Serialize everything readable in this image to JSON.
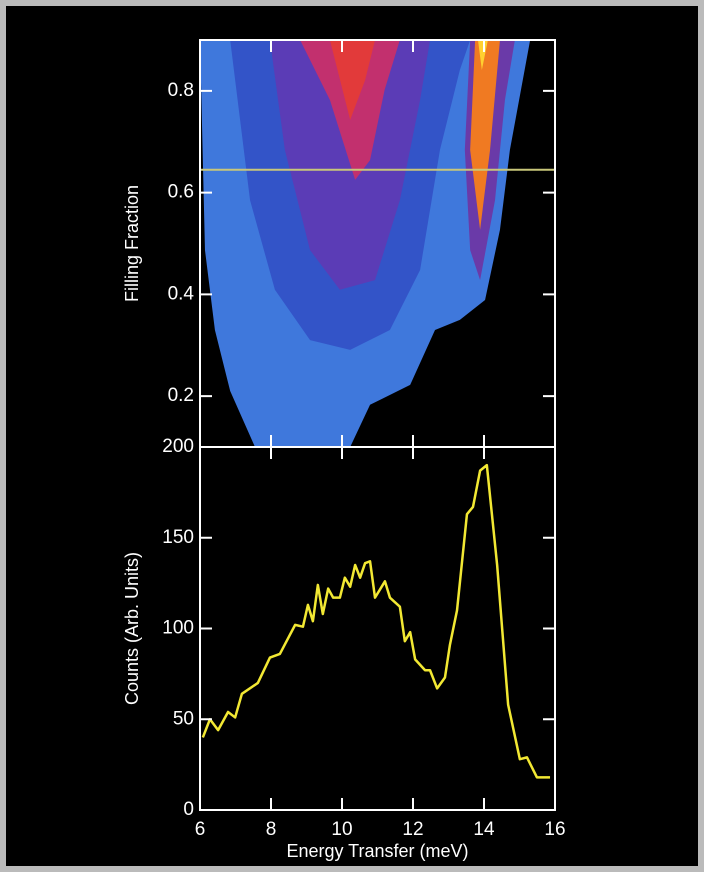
{
  "chart_data": [
    {
      "type": "contour",
      "ylabel": "Filling Fraction",
      "xlim": [
        6,
        16
      ],
      "ylim": [
        0.1,
        0.9
      ],
      "xticks": [
        6,
        8,
        10,
        12,
        14,
        16
      ],
      "yticks": [
        0.2,
        0.4,
        0.6,
        0.8
      ],
      "hline": 0.645,
      "hline_color": "#c9c77a",
      "contours": [
        {
          "color": "#3f78dc",
          "points": [
            [
              6,
              0.9
            ],
            [
              6.14,
              0.487
            ],
            [
              6.42,
              0.33
            ],
            [
              6.85,
              0.21
            ],
            [
              7.55,
              0.1
            ],
            [
              10.23,
              0.1
            ],
            [
              10.79,
              0.183
            ],
            [
              11.92,
              0.222
            ],
            [
              12.62,
              0.33
            ],
            [
              13.32,
              0.35
            ],
            [
              14.03,
              0.389
            ],
            [
              14.45,
              0.527
            ],
            [
              14.73,
              0.684
            ],
            [
              15.3,
              0.9
            ]
          ]
        },
        {
          "color": "#3354c8",
          "points": [
            [
              6.85,
              0.9
            ],
            [
              7.41,
              0.585
            ],
            [
              8.11,
              0.409
            ],
            [
              9.1,
              0.31
            ],
            [
              10.23,
              0.291
            ],
            [
              11.35,
              0.33
            ],
            [
              12.2,
              0.448
            ],
            [
              12.76,
              0.684
            ],
            [
              13.32,
              0.841
            ],
            [
              13.61,
              0.9
            ]
          ]
        },
        {
          "color": "#5b3cb6",
          "points": [
            [
              7.97,
              0.9
            ],
            [
              8.39,
              0.684
            ],
            [
              9.1,
              0.487
            ],
            [
              9.94,
              0.409
            ],
            [
              10.93,
              0.428
            ],
            [
              11.63,
              0.585
            ],
            [
              12.2,
              0.782
            ],
            [
              12.48,
              0.9
            ]
          ]
        },
        {
          "color": "#6a3aa8",
          "points": [
            [
              13.61,
              0.9
            ],
            [
              13.46,
              0.684
            ],
            [
              13.61,
              0.487
            ],
            [
              13.89,
              0.428
            ],
            [
              14.31,
              0.585
            ],
            [
              14.59,
              0.782
            ],
            [
              14.87,
              0.9
            ]
          ]
        },
        {
          "color": "#c2306e",
          "points": [
            [
              8.82,
              0.9
            ],
            [
              9.66,
              0.782
            ],
            [
              10.37,
              0.625
            ],
            [
              10.79,
              0.664
            ],
            [
              11.2,
              0.802
            ],
            [
              11.63,
              0.9
            ]
          ]
        },
        {
          "color": "#e23a3a",
          "points": [
            [
              9.66,
              0.9
            ],
            [
              10.23,
              0.743
            ],
            [
              10.65,
              0.821
            ],
            [
              10.93,
              0.9
            ]
          ]
        },
        {
          "color": "#f07a22",
          "points": [
            [
              13.75,
              0.9
            ],
            [
              13.61,
              0.684
            ],
            [
              13.89,
              0.527
            ],
            [
              14.17,
              0.684
            ],
            [
              14.45,
              0.9
            ]
          ]
        },
        {
          "color": "#ffd030",
          "points": [
            [
              13.83,
              0.9
            ],
            [
              13.94,
              0.841
            ],
            [
              14.11,
              0.9
            ]
          ]
        }
      ]
    },
    {
      "type": "line",
      "xlabel": "Energy Transfer (meV)",
      "ylabel": "Counts (Arb. Units)",
      "xlim": [
        6,
        16
      ],
      "ylim": [
        0,
        200
      ],
      "xticks": [
        6,
        8,
        10,
        12,
        14,
        16
      ],
      "yticks": [
        0,
        50,
        100,
        150,
        200
      ],
      "series": [
        {
          "color": "#f2e833",
          "x": [
            6.08,
            6.28,
            6.51,
            6.79,
            6.99,
            7.18,
            7.63,
            7.97,
            8.25,
            8.68,
            8.9,
            9.04,
            9.18,
            9.32,
            9.46,
            9.61,
            9.75,
            9.94,
            10.08,
            10.23,
            10.37,
            10.51,
            10.65,
            10.79,
            10.93,
            11.21,
            11.35,
            11.63,
            11.77,
            11.92,
            12.06,
            12.34,
            12.48,
            12.68,
            12.9,
            13.04,
            13.24,
            13.52,
            13.69,
            13.89,
            14.08,
            14.37,
            14.68,
            15.01,
            15.21,
            15.49,
            15.86
          ],
          "values": [
            40,
            50,
            44,
            54,
            51,
            64,
            70,
            84,
            86,
            102,
            101,
            113,
            104,
            124,
            108,
            122,
            117,
            117,
            128,
            123,
            135,
            128,
            136,
            137,
            117,
            126,
            117,
            112,
            93,
            98,
            83,
            77,
            77,
            67,
            73,
            91,
            110,
            163,
            167,
            187,
            190,
            135,
            58,
            28,
            29,
            18,
            18
          ]
        }
      ]
    }
  ]
}
